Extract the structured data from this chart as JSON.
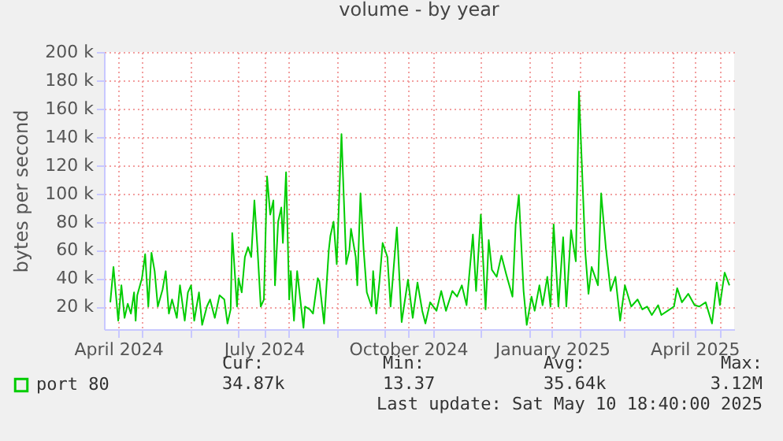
{
  "chart_data": {
    "type": "line",
    "title": "volume - by year",
    "ylabel": "bytes per second",
    "x": [
      "2024-04-11",
      "2024-04-13",
      "2024-04-16",
      "2024-04-18",
      "2024-04-20",
      "2024-04-22",
      "2024-04-24",
      "2024-04-26",
      "2024-04-27",
      "2024-04-28",
      "2024-05-01",
      "2024-05-03",
      "2024-05-05",
      "2024-05-07",
      "2024-05-09",
      "2024-05-11",
      "2024-05-14",
      "2024-05-16",
      "2024-05-18",
      "2024-05-20",
      "2024-05-23",
      "2024-05-25",
      "2024-05-28",
      "2024-05-30",
      "2024-06-01",
      "2024-06-03",
      "2024-06-06",
      "2024-06-08",
      "2024-06-11",
      "2024-06-13",
      "2024-06-16",
      "2024-06-19",
      "2024-06-22",
      "2024-06-24",
      "2024-06-26",
      "2024-06-27",
      "2024-06-30",
      "2024-07-01",
      "2024-07-03",
      "2024-07-05",
      "2024-07-07",
      "2024-07-09",
      "2024-07-11",
      "2024-07-13",
      "2024-07-15",
      "2024-07-17",
      "2024-07-19",
      "2024-07-21",
      "2024-07-23",
      "2024-07-24",
      "2024-07-26",
      "2024-07-28",
      "2024-07-29",
      "2024-07-31",
      "2024-08-02",
      "2024-08-03",
      "2024-08-05",
      "2024-08-07",
      "2024-08-09",
      "2024-08-11",
      "2024-08-12",
      "2024-08-15",
      "2024-08-17",
      "2024-08-20",
      "2024-08-21",
      "2024-08-24",
      "2024-08-27",
      "2024-08-28",
      "2024-08-30",
      "2024-09-01",
      "2024-09-04",
      "2024-09-07",
      "2024-09-09",
      "2024-09-10",
      "2024-09-13",
      "2024-09-14",
      "2024-09-16",
      "2024-09-18",
      "2024-09-20",
      "2024-09-23",
      "2024-09-24",
      "2024-09-26",
      "2024-09-28",
      "2024-09-30",
      "2024-10-03",
      "2024-10-05",
      "2024-10-09",
      "2024-10-12",
      "2024-10-16",
      "2024-10-19",
      "2024-10-22",
      "2024-10-25",
      "2024-10-27",
      "2024-10-30",
      "2024-11-03",
      "2024-11-06",
      "2024-11-09",
      "2024-11-13",
      "2024-11-16",
      "2024-11-19",
      "2024-11-22",
      "2024-11-26",
      "2024-11-28",
      "2024-12-01",
      "2024-12-04",
      "2024-12-06",
      "2024-12-08",
      "2024-12-11",
      "2024-12-14",
      "2024-12-17",
      "2024-12-21",
      "2024-12-23",
      "2024-12-25",
      "2024-12-28",
      "2024-12-30",
      "2025-01-02",
      "2025-01-04",
      "2025-01-07",
      "2025-01-09",
      "2025-01-12",
      "2025-01-14",
      "2025-01-16",
      "2025-01-19",
      "2025-01-22",
      "2025-01-24",
      "2025-01-27",
      "2025-01-30",
      "2025-02-01",
      "2025-02-05",
      "2025-02-07",
      "2025-02-09",
      "2025-02-13",
      "2025-02-15",
      "2025-02-18",
      "2025-02-21",
      "2025-02-24",
      "2025-02-27",
      "2025-03-02",
      "2025-03-06",
      "2025-03-10",
      "2025-03-13",
      "2025-03-16",
      "2025-03-19",
      "2025-03-23",
      "2025-03-25",
      "2025-03-29",
      "2025-04-02",
      "2025-04-04",
      "2025-04-07",
      "2025-04-11",
      "2025-04-15",
      "2025-04-18",
      "2025-04-22",
      "2025-04-26",
      "2025-04-29",
      "2025-05-01",
      "2025-05-04",
      "2025-05-07"
    ],
    "series": [
      {
        "name": "port 80",
        "color": "#00cc00",
        "values": [
          23000,
          48000,
          10000,
          35000,
          12000,
          22000,
          15000,
          30000,
          10000,
          28000,
          40000,
          57000,
          20000,
          58000,
          45000,
          20000,
          32000,
          45000,
          15000,
          25000,
          12000,
          35000,
          10000,
          30000,
          35000,
          10000,
          30000,
          7000,
          20000,
          25000,
          12000,
          28000,
          25000,
          8000,
          18000,
          72000,
          20000,
          40000,
          30000,
          55000,
          62000,
          55000,
          95000,
          60000,
          20000,
          25000,
          112000,
          85000,
          95000,
          35000,
          80000,
          90000,
          65000,
          115000,
          25000,
          45000,
          10000,
          45000,
          25000,
          5000,
          20000,
          18000,
          15000,
          40000,
          38000,
          8000,
          60000,
          70000,
          80000,
          50000,
          142000,
          50000,
          60000,
          75000,
          55000,
          35000,
          100000,
          60000,
          30000,
          20000,
          45000,
          15000,
          38000,
          65000,
          55000,
          20000,
          76000,
          9000,
          39000,
          12000,
          37000,
          17000,
          8000,
          23000,
          17000,
          31000,
          17000,
          31000,
          27000,
          35000,
          21000,
          71000,
          31000,
          85000,
          18000,
          67000,
          46000,
          41000,
          56000,
          43000,
          27000,
          78000,
          99000,
          31000,
          7000,
          27000,
          17000,
          35000,
          21000,
          41000,
          20000,
          78000,
          20000,
          69000,
          20000,
          74000,
          52000,
          172000,
          58000,
          29000,
          48000,
          35000,
          100000,
          61000,
          31000,
          41000,
          10000,
          35000,
          20000,
          25000,
          18000,
          20000,
          14000,
          21000,
          14000,
          17000,
          20000,
          33000,
          23000,
          29000,
          21000,
          20000,
          23000,
          8000,
          37000,
          21000,
          44000,
          35000
        ]
      }
    ],
    "xlim": [
      "2024-04-07",
      "2025-05-10"
    ],
    "xticks": [
      {
        "value": "2024-04-16",
        "label": "April 2024"
      },
      {
        "value": "2024-05-01",
        "label": null
      },
      {
        "value": "2024-06-01",
        "label": null
      },
      {
        "value": "2024-07-01",
        "label": null
      },
      {
        "value": "2024-07-17",
        "label": "July 2024"
      },
      {
        "value": "2024-08-01",
        "label": null
      },
      {
        "value": "2024-09-01",
        "label": null
      },
      {
        "value": "2024-10-01",
        "label": null
      },
      {
        "value": "2024-10-16",
        "label": "October 2024"
      },
      {
        "value": "2024-11-01",
        "label": null
      },
      {
        "value": "2024-12-01",
        "label": null
      },
      {
        "value": "2025-01-01",
        "label": null
      },
      {
        "value": "2025-01-15",
        "label": "January 2025"
      },
      {
        "value": "2025-02-01",
        "label": null
      },
      {
        "value": "2025-03-01",
        "label": null
      },
      {
        "value": "2025-04-01",
        "label": null
      },
      {
        "value": "2025-04-15",
        "label": "April 2025"
      },
      {
        "value": "2025-05-01",
        "label": null
      }
    ],
    "ylim": [
      4000,
      200000
    ],
    "yticks": [
      {
        "value": 20000,
        "label": "20 k"
      },
      {
        "value": 40000,
        "label": "40 k"
      },
      {
        "value": 60000,
        "label": "60 k"
      },
      {
        "value": 80000,
        "label": "80 k"
      },
      {
        "value": 100000,
        "label": "100 k"
      },
      {
        "value": 120000,
        "label": "120 k"
      },
      {
        "value": 140000,
        "label": "140 k"
      },
      {
        "value": 160000,
        "label": "160 k"
      },
      {
        "value": 180000,
        "label": "180 k"
      },
      {
        "value": 200000,
        "label": "200 k"
      }
    ],
    "grid": true,
    "legend": "bottom left",
    "annotations": [
      "Cur:",
      "Min:",
      "Avg:",
      "Max:",
      "34.87k",
      "13.37",
      "35.64k",
      "3.12M",
      "Last update: Sat May 10 18:40:00 2025"
    ]
  }
}
